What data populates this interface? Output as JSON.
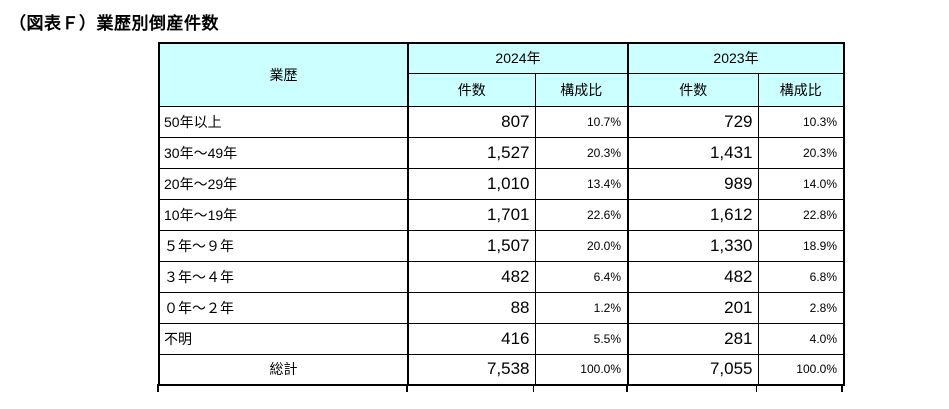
{
  "title": "（図表Ｆ）業歴別倒産件数",
  "table": {
    "header": {
      "business_age": "業歴",
      "y2024": "2024年",
      "y2023": "2023年",
      "cases": "件数",
      "share": "構成比"
    },
    "rows": [
      {
        "label": "50年以上",
        "cases_2024": "807",
        "share_2024": "10.7%",
        "cases_2023": "729",
        "share_2023": "10.3%"
      },
      {
        "label": "30年～49年",
        "cases_2024": "1,527",
        "share_2024": "20.3%",
        "cases_2023": "1,431",
        "share_2023": "20.3%"
      },
      {
        "label": "20年～29年",
        "cases_2024": "1,010",
        "share_2024": "13.4%",
        "cases_2023": "989",
        "share_2023": "14.0%"
      },
      {
        "label": "10年～19年",
        "cases_2024": "1,701",
        "share_2024": "22.6%",
        "cases_2023": "1,612",
        "share_2023": "22.8%"
      },
      {
        "label": "５年～９年",
        "cases_2024": "1,507",
        "share_2024": "20.0%",
        "cases_2023": "1,330",
        "share_2023": "18.9%"
      },
      {
        "label": "３年～４年",
        "cases_2024": "482",
        "share_2024": "6.4%",
        "cases_2023": "482",
        "share_2023": "6.8%"
      },
      {
        "label": "０年～２年",
        "cases_2024": "88",
        "share_2024": "1.2%",
        "cases_2023": "201",
        "share_2023": "2.8%"
      },
      {
        "label": "不明",
        "cases_2024": "416",
        "share_2024": "5.5%",
        "cases_2023": "281",
        "share_2023": "4.0%"
      }
    ],
    "total": {
      "label": "総計",
      "cases_2024": "7,538",
      "share_2024": "100.0%",
      "cases_2023": "7,055",
      "share_2023": "100.0%"
    }
  },
  "colors": {
    "header_bg": "#CCFFFF",
    "border": "#000000",
    "text": "#000000"
  }
}
